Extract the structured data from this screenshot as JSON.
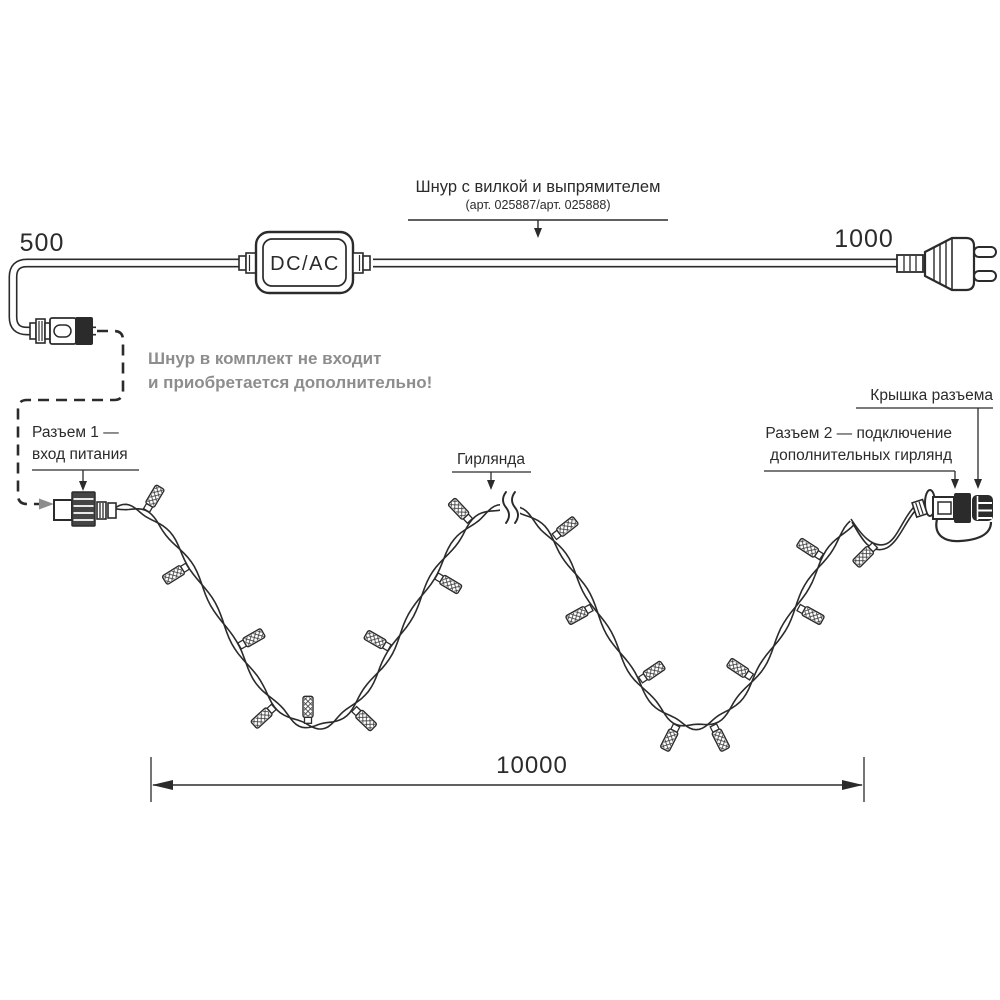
{
  "cord_section": {
    "title": "Шнур с вилкой и выпрямителем",
    "subtitle": "(арт. 025887/арт. 025888)",
    "length_left_mm": "500",
    "length_right_mm": "1000",
    "converter_label": "DC/AC",
    "note_line1": "Шнур в комплект не входит",
    "note_line2": "и приобретается дополнительно!"
  },
  "garland_section": {
    "connector1_label_line1": "Разъем 1 —",
    "connector1_label_line2": "вход питания",
    "garland_label": "Гирлянда",
    "connector2_label_line1": "Разъем 2 — подключение",
    "connector2_label_line2": "дополнительных гирлянд",
    "cap_label": "Крышка разъема",
    "total_length_mm": "10000"
  },
  "colors": {
    "ink": "#2b2b2b",
    "gray_note": "#8d8d8d"
  }
}
